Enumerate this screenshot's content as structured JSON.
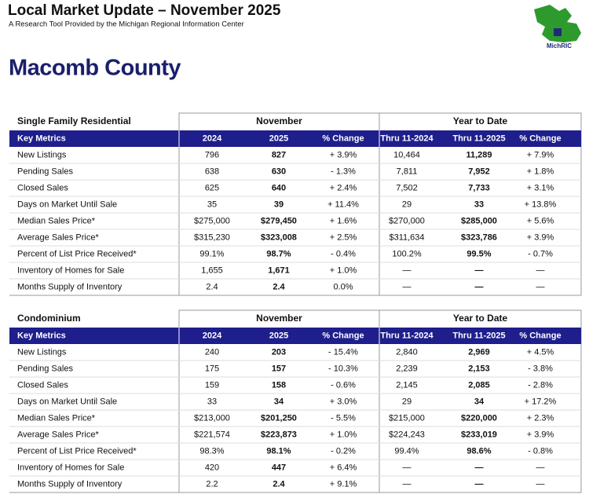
{
  "header": {
    "title": "Local Market Update – November 2025",
    "subtitle": "A Research Tool Provided by the Michigan Regional Information Center",
    "logo": "MichRIC"
  },
  "county": "Macomb County",
  "tables": [
    {
      "section": "Single Family Residential",
      "groups": [
        "November",
        "Year to Date"
      ],
      "columns": [
        "Key Metrics",
        "2024",
        "2025",
        "% Change",
        "Thru 11-2024",
        "Thru 11-2025",
        "% Change"
      ],
      "rows": [
        [
          "New Listings",
          "796",
          "827",
          "+ 3.9%",
          "10,464",
          "11,289",
          "+ 7.9%"
        ],
        [
          "Pending Sales",
          "638",
          "630",
          "- 1.3%",
          "7,811",
          "7,952",
          "+ 1.8%"
        ],
        [
          "Closed Sales",
          "625",
          "640",
          "+ 2.4%",
          "7,502",
          "7,733",
          "+ 3.1%"
        ],
        [
          "Days on Market Until Sale",
          "35",
          "39",
          "+ 11.4%",
          "29",
          "33",
          "+ 13.8%"
        ],
        [
          "Median Sales Price*",
          "$275,000",
          "$279,450",
          "+ 1.6%",
          "$270,000",
          "$285,000",
          "+ 5.6%"
        ],
        [
          "Average Sales Price*",
          "$315,230",
          "$323,008",
          "+ 2.5%",
          "$311,634",
          "$323,786",
          "+ 3.9%"
        ],
        [
          "Percent of List Price Received*",
          "99.1%",
          "98.7%",
          "- 0.4%",
          "100.2%",
          "99.5%",
          "- 0.7%"
        ],
        [
          "Inventory of Homes for Sale",
          "1,655",
          "1,671",
          "+ 1.0%",
          "—",
          "—",
          "—"
        ],
        [
          "Months Supply of Inventory",
          "2.4",
          "2.4",
          "0.0%",
          "—",
          "—",
          "—"
        ]
      ]
    },
    {
      "section": "Condominium",
      "groups": [
        "November",
        "Year to Date"
      ],
      "columns": [
        "Key Metrics",
        "2024",
        "2025",
        "% Change",
        "Thru 11-2024",
        "Thru 11-2025",
        "% Change"
      ],
      "rows": [
        [
          "New Listings",
          "240",
          "203",
          "- 15.4%",
          "2,840",
          "2,969",
          "+ 4.5%"
        ],
        [
          "Pending Sales",
          "175",
          "157",
          "- 10.3%",
          "2,239",
          "2,153",
          "- 3.8%"
        ],
        [
          "Closed Sales",
          "159",
          "158",
          "- 0.6%",
          "2,145",
          "2,085",
          "- 2.8%"
        ],
        [
          "Days on Market Until Sale",
          "33",
          "34",
          "+ 3.0%",
          "29",
          "34",
          "+ 17.2%"
        ],
        [
          "Median Sales Price*",
          "$213,000",
          "$201,250",
          "- 5.5%",
          "$215,000",
          "$220,000",
          "+ 2.3%"
        ],
        [
          "Average Sales Price*",
          "$221,574",
          "$223,873",
          "+ 1.0%",
          "$224,243",
          "$233,019",
          "+ 3.9%"
        ],
        [
          "Percent of List Price Received*",
          "98.3%",
          "98.1%",
          "- 0.2%",
          "99.4%",
          "98.6%",
          "- 0.8%"
        ],
        [
          "Inventory of Homes for Sale",
          "420",
          "447",
          "+ 6.4%",
          "—",
          "—",
          "—"
        ],
        [
          "Months Supply of Inventory",
          "2.2",
          "2.4",
          "+ 9.1%",
          "—",
          "—",
          "—"
        ]
      ]
    }
  ]
}
